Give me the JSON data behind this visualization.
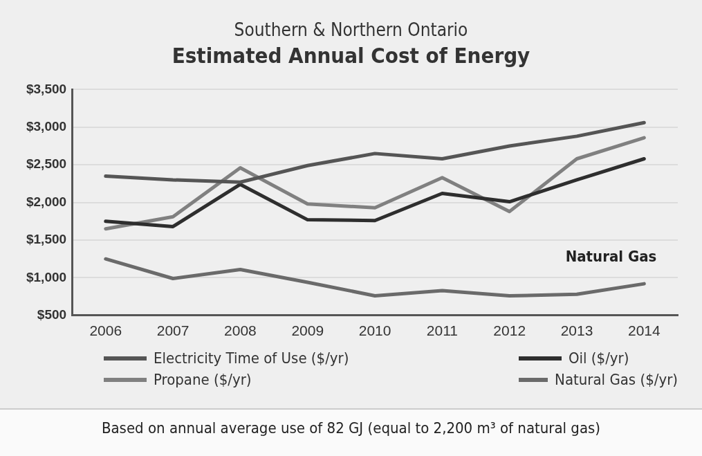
{
  "chart_data": {
    "type": "line",
    "subtitle": "Southern & Northern Ontario",
    "title": "Estimated Annual Cost of Energy",
    "categories": [
      "2006",
      "2007",
      "2008",
      "2009",
      "2010",
      "2011",
      "2012",
      "2013",
      "2014"
    ],
    "series": [
      {
        "name": "Electricity Time of Use ($/yr)",
        "color": "#555555",
        "values": [
          2350,
          2300,
          2270,
          2490,
          2650,
          2580,
          2750,
          2880,
          3060
        ]
      },
      {
        "name": "Oil ($/yr)",
        "color": "#2e2e2e",
        "values": [
          1750,
          1680,
          2240,
          1770,
          1760,
          2120,
          2010,
          2300,
          2580
        ]
      },
      {
        "name": "Propane ($/yr)",
        "color": "#808080",
        "values": [
          1650,
          1810,
          2460,
          1980,
          1930,
          2330,
          1880,
          2580,
          2860
        ]
      },
      {
        "name": "Natural Gas ($/yr)",
        "color": "#6a6a6a",
        "values": [
          1250,
          990,
          1110,
          940,
          760,
          830,
          760,
          780,
          920
        ]
      }
    ],
    "ylim": [
      500,
      3500
    ],
    "yticks": [
      {
        "value": 500,
        "label": "$500"
      },
      {
        "value": 1000,
        "label": "$1,000"
      },
      {
        "value": 1500,
        "label": "$1,500"
      },
      {
        "value": 2000,
        "label": "$2,000"
      },
      {
        "value": 2500,
        "label": "$2,500"
      },
      {
        "value": 3000,
        "label": "$3,000"
      },
      {
        "value": 3500,
        "label": "$3,500"
      }
    ],
    "grid": "y",
    "legend": "bottom",
    "marker": "none",
    "line_style": "solid",
    "annotations": [
      "Natural Gas",
      "Based on annual average use of 82 GJ (equal to 2,200 m³ of natural gas)"
    ]
  }
}
